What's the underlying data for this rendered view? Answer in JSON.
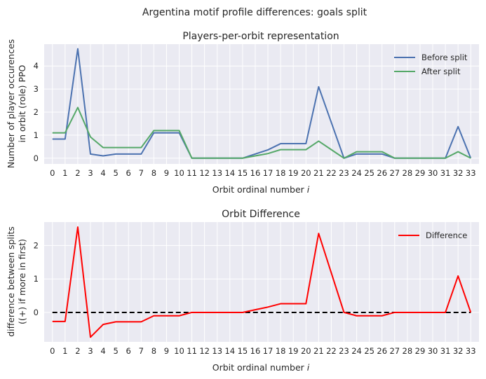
{
  "suptitle": "Argentina motif profile differences: goals split",
  "chart_data": [
    {
      "type": "line",
      "title": "Players-per-orbit representation",
      "xlabel": "Orbit ordinal number",
      "xlabel_var": "i",
      "ylabel_line1": "Number of player occurences",
      "ylabel_line2": "in orbit (role) PPO",
      "x": [
        0,
        1,
        2,
        3,
        4,
        5,
        6,
        7,
        8,
        9,
        10,
        11,
        12,
        13,
        14,
        15,
        16,
        17,
        18,
        19,
        20,
        21,
        22,
        23,
        24,
        25,
        26,
        27,
        28,
        29,
        30,
        31,
        32,
        33
      ],
      "xlim": [
        -0.65,
        33.65
      ],
      "ylim": [
        -0.25,
        4.95
      ],
      "yticks": [
        0,
        1,
        2,
        3,
        4
      ],
      "grid": true,
      "legend_position": "top-right",
      "series": [
        {
          "name": "Before split",
          "color": "#4c72b0",
          "values": [
            0.83,
            0.83,
            4.75,
            0.18,
            0.1,
            0.18,
            0.18,
            0.18,
            1.1,
            1.1,
            1.1,
            0.0,
            0.0,
            0.0,
            0.0,
            0.0,
            0.18,
            0.36,
            0.63,
            0.63,
            0.63,
            3.1,
            1.55,
            0.0,
            0.18,
            0.18,
            0.18,
            0.0,
            0.0,
            0.0,
            0.0,
            0.0,
            1.37,
            0.0
          ]
        },
        {
          "name": "After split",
          "color": "#55a868",
          "values": [
            1.1,
            1.1,
            2.2,
            0.92,
            0.46,
            0.46,
            0.46,
            0.46,
            1.2,
            1.2,
            1.2,
            0.0,
            0.0,
            0.0,
            0.0,
            0.0,
            0.1,
            0.2,
            0.37,
            0.37,
            0.37,
            0.74,
            0.37,
            0.0,
            0.28,
            0.28,
            0.28,
            0.0,
            0.0,
            0.0,
            0.0,
            0.0,
            0.28,
            0.0
          ]
        }
      ]
    },
    {
      "type": "line",
      "title": "Orbit Difference",
      "xlabel": "Orbit ordinal number",
      "xlabel_var": "i",
      "ylabel_line1": "difference between splits",
      "ylabel_line2": "((+) if more in first)",
      "x": [
        0,
        1,
        2,
        3,
        4,
        5,
        6,
        7,
        8,
        9,
        10,
        11,
        12,
        13,
        14,
        15,
        16,
        17,
        18,
        19,
        20,
        21,
        22,
        23,
        24,
        25,
        26,
        27,
        28,
        29,
        30,
        31,
        32,
        33
      ],
      "xlim": [
        -0.65,
        33.65
      ],
      "ylim": [
        -0.88,
        2.7
      ],
      "yticks": [
        0,
        1,
        2
      ],
      "grid": true,
      "legend_position": "top-right",
      "zero_line": {
        "y": 0,
        "style": "dashed",
        "color": "#000000"
      },
      "series": [
        {
          "name": "Difference",
          "color": "#ff0000",
          "values": [
            -0.27,
            -0.27,
            2.55,
            -0.74,
            -0.36,
            -0.28,
            -0.28,
            -0.28,
            -0.1,
            -0.1,
            -0.1,
            0.0,
            0.0,
            0.0,
            0.0,
            0.0,
            0.08,
            0.16,
            0.26,
            0.26,
            0.26,
            2.36,
            1.18,
            0.0,
            -0.1,
            -0.1,
            -0.1,
            0.0,
            0.0,
            0.0,
            0.0,
            0.0,
            1.09,
            0.0
          ]
        }
      ]
    }
  ]
}
